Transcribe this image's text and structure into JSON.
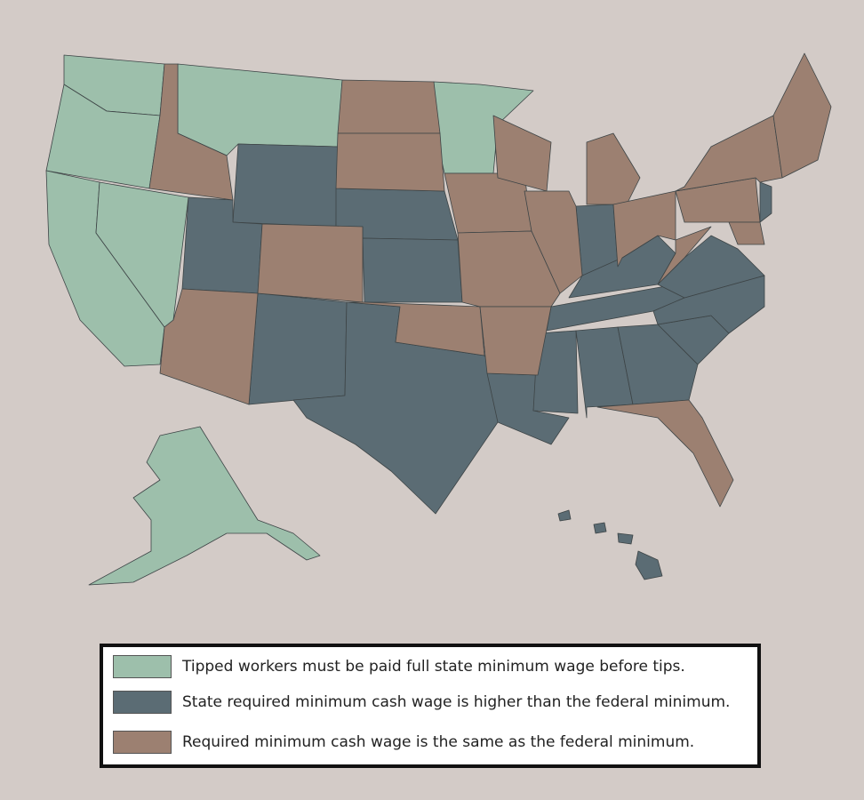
{
  "legend": {
    "items": [
      {
        "label": "Tipped workers must be paid full state minimum wage before tips.",
        "color": "#9dbfab"
      },
      {
        "label": "State required minimum cash wage is higher than the federal minimum.",
        "color": "#5b6c74"
      },
      {
        "label": "Required minimum cash wage is the same as the federal minimum.",
        "color": "#9c8071"
      }
    ]
  }
}
